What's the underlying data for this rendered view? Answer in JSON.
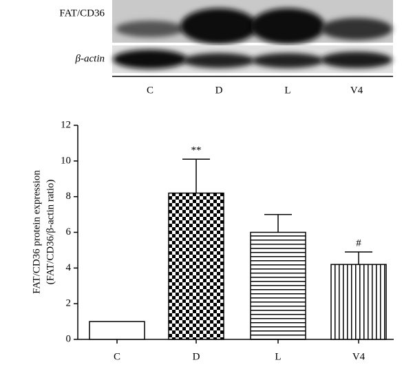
{
  "blot": {
    "rows": [
      "FAT/CD36",
      "β-actin"
    ],
    "lanes": [
      "C",
      "D",
      "L",
      "V4"
    ]
  },
  "chart_data": {
    "type": "bar",
    "y_label": [
      "FAT/CD36 protein expression",
      "(FAT/CD36/β-actin ratio)"
    ],
    "categories": [
      "C",
      "D",
      "L",
      "V4"
    ],
    "values": [
      1.0,
      8.2,
      6.0,
      4.2
    ],
    "errors": [
      null,
      1.9,
      1.0,
      0.7
    ],
    "annotations": [
      null,
      "**",
      null,
      "#"
    ],
    "patterns": [
      "solid",
      "checker",
      "hlines",
      "vlines"
    ],
    "color": "#000000",
    "ylim": [
      0,
      12
    ],
    "yticks": [
      0,
      2,
      4,
      6,
      8,
      10,
      12
    ],
    "grid": false
  }
}
